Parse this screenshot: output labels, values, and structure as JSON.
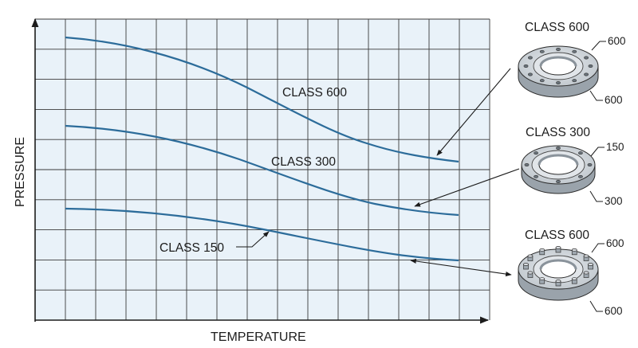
{
  "axes": {
    "x_label": "TEMPERATURE",
    "y_label": "PRESSURE"
  },
  "curves": [
    {
      "id": "class-600",
      "label": "CLASS 600"
    },
    {
      "id": "class-300",
      "label": "CLASS 300"
    },
    {
      "id": "class-150",
      "label": "CLASS 150"
    }
  ],
  "flanges": [
    {
      "title": "CLASS 600",
      "callout_top": "600",
      "callout_bottom": "600"
    },
    {
      "title": "CLASS 300",
      "callout_top": "150",
      "callout_bottom": "300"
    },
    {
      "title": "CLASS 600",
      "callout_top": "600",
      "callout_bottom": "600"
    }
  ],
  "colors": {
    "grid_background": "#e9f2f9",
    "grid_line": "#3a3a3a",
    "curve": "#2c6c9a",
    "flange_fill": "#c8ced4",
    "flange_dark": "#9aa3ab"
  }
}
